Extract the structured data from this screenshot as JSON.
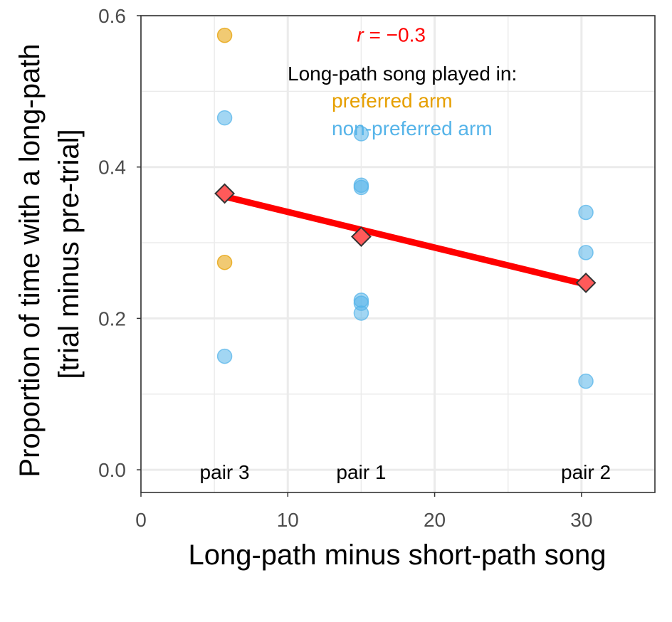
{
  "chart_data": {
    "type": "scatter",
    "xlabel": "Long-path minus short-path song",
    "ylabel_line1": "Proportion of time with a long-path",
    "ylabel_line2": "[trial minus pre-trial]",
    "xlim": [
      0,
      35
    ],
    "ylim": [
      -0.03,
      0.6
    ],
    "x_ticks": [
      0,
      10,
      20,
      30
    ],
    "x_tick_labels": [
      "0",
      "10",
      "20",
      "30"
    ],
    "y_ticks": [
      0.0,
      0.2,
      0.4,
      0.6
    ],
    "y_tick_labels": [
      "0.0",
      "0.2",
      "0.4",
      "0.6"
    ],
    "x_minor_ticks": [
      5,
      15,
      25
    ],
    "y_minor_ticks": [
      0.1,
      0.3,
      0.5
    ],
    "grid": true,
    "annotation": {
      "r_symbol": "r",
      "r_value": " = −0.3",
      "color": "#ff0000",
      "x": 15.0,
      "y": 0.575
    },
    "legend": {
      "title": "Long-path song played in:",
      "position": "top-right",
      "entries": [
        {
          "label": "preferred arm",
          "color": "#e69f00"
        },
        {
          "label": "non-preferred arm",
          "color": "#56b4e9"
        }
      ]
    },
    "pair_labels": [
      {
        "label": "pair 3",
        "x": 5.7
      },
      {
        "label": "pair 1",
        "x": 15.0
      },
      {
        "label": "pair 2",
        "x": 30.3
      }
    ],
    "series": [
      {
        "name": "preferred arm",
        "color": "#e69f00",
        "points": [
          {
            "x": 5.7,
            "y": 0.574
          },
          {
            "x": 5.7,
            "y": 0.274
          }
        ]
      },
      {
        "name": "non-preferred arm",
        "color": "#56b4e9",
        "points": [
          {
            "x": 5.7,
            "y": 0.465
          },
          {
            "x": 5.7,
            "y": 0.15
          },
          {
            "x": 15.0,
            "y": 0.444
          },
          {
            "x": 15.0,
            "y": 0.376
          },
          {
            "x": 15.0,
            "y": 0.373
          },
          {
            "x": 15.0,
            "y": 0.224
          },
          {
            "x": 15.0,
            "y": 0.22
          },
          {
            "x": 15.0,
            "y": 0.207
          },
          {
            "x": 30.3,
            "y": 0.34
          },
          {
            "x": 30.3,
            "y": 0.287
          },
          {
            "x": 30.3,
            "y": 0.117
          }
        ]
      }
    ],
    "means": {
      "color": "#ff0000",
      "points": [
        {
          "x": 5.7,
          "y": 0.365
        },
        {
          "x": 15.0,
          "y": 0.308
        },
        {
          "x": 30.3,
          "y": 0.247
        }
      ]
    },
    "fit_line": {
      "color": "#ff0000",
      "x": [
        5.7,
        30.3
      ],
      "y": [
        0.361,
        0.245
      ]
    }
  }
}
